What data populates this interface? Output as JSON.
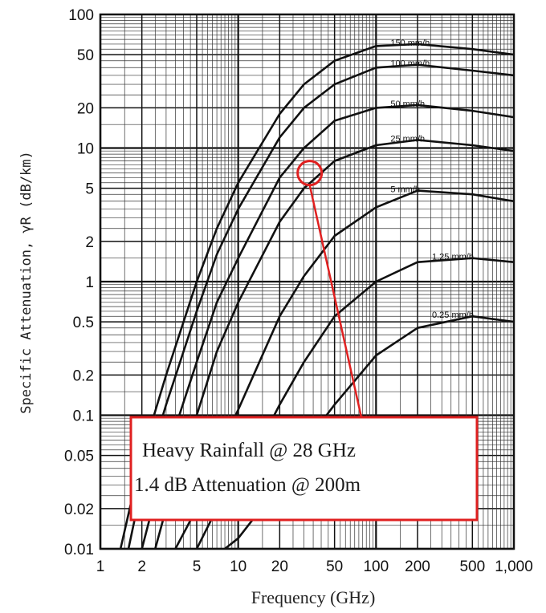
{
  "chart_data": {
    "type": "line",
    "title": "",
    "xlabel": "Frequency (GHz)",
    "ylabel": "Specific Attenuation, γR (dB/km)",
    "x_scale": "log",
    "y_scale": "log",
    "xlim": [
      1,
      1000
    ],
    "ylim": [
      0.01,
      100
    ],
    "grid": true,
    "x_ticks": [
      1,
      2,
      5,
      10,
      20,
      50,
      100,
      200,
      500,
      1000
    ],
    "x_tick_labels": [
      "1",
      "2",
      "5",
      "10",
      "20",
      "50",
      "100",
      "200",
      "500",
      "1,000"
    ],
    "y_ticks": [
      100,
      50,
      20,
      10,
      5,
      2,
      1,
      0.5,
      0.2,
      0.1,
      0.05,
      0.02,
      0.01
    ],
    "y_tick_labels": [
      "100",
      "50",
      "20",
      "10",
      "5",
      "2",
      "1",
      "0.5",
      "0.2",
      "0.1",
      "0.05",
      "0.02",
      "0.01"
    ],
    "series": [
      {
        "name": "150 mm/h",
        "x": [
          1.4,
          2,
          3,
          5,
          7,
          10,
          20,
          30,
          50,
          100,
          200,
          500,
          1000
        ],
        "y": [
          0.01,
          0.05,
          0.2,
          1,
          2.5,
          5.5,
          18,
          30,
          45,
          58,
          60,
          55,
          50
        ]
      },
      {
        "name": "100 mm/h",
        "x": [
          1.6,
          2,
          3,
          5,
          7,
          10,
          20,
          30,
          50,
          100,
          200,
          500,
          1000
        ],
        "y": [
          0.01,
          0.03,
          0.12,
          0.6,
          1.6,
          3.5,
          12,
          20,
          30,
          40,
          42,
          38,
          35
        ]
      },
      {
        "name": "50 mm/h",
        "x": [
          2,
          3,
          5,
          7,
          10,
          20,
          30,
          50,
          100,
          200,
          500,
          1000
        ],
        "y": [
          0.01,
          0.05,
          0.25,
          0.7,
          1.5,
          6,
          10,
          16,
          20,
          21,
          19,
          17
        ]
      },
      {
        "name": "25 mm/h",
        "x": [
          2.5,
          3,
          5,
          7,
          10,
          20,
          30,
          50,
          100,
          200,
          500,
          1000
        ],
        "y": [
          0.01,
          0.02,
          0.1,
          0.3,
          0.7,
          2.8,
          5,
          8,
          10.5,
          11.5,
          10.5,
          9.5
        ]
      },
      {
        "name": "5 mm/h",
        "x": [
          3.5,
          5,
          7,
          10,
          20,
          30,
          50,
          100,
          200,
          500,
          1000
        ],
        "y": [
          0.01,
          0.02,
          0.05,
          0.11,
          0.55,
          1.1,
          2.2,
          3.6,
          4.8,
          4.5,
          4
        ]
      },
      {
        "name": "1.25 mm/h",
        "x": [
          5,
          7,
          10,
          20,
          30,
          50,
          100,
          200,
          500,
          1000
        ],
        "y": [
          0.01,
          0.02,
          0.03,
          0.12,
          0.25,
          0.55,
          1,
          1.4,
          1.5,
          1.4
        ]
      },
      {
        "name": "0.25 mm/h",
        "x": [
          8,
          10,
          20,
          30,
          50,
          100,
          200,
          500,
          1000
        ],
        "y": [
          0.01,
          0.012,
          0.03,
          0.06,
          0.12,
          0.28,
          0.45,
          0.55,
          0.5
        ]
      }
    ],
    "annotation": {
      "highlight_point": {
        "x": 33,
        "y": 6.5
      },
      "lines": [
        "Heavy Rainfall @ 28 GHz",
        "1.4 dB Attenuation @ 200m"
      ],
      "color": "#e02020"
    },
    "colors": {
      "curve": "#111111",
      "grid_major": "#111111",
      "grid_minor": "#333333",
      "highlight": "#e02020"
    }
  }
}
